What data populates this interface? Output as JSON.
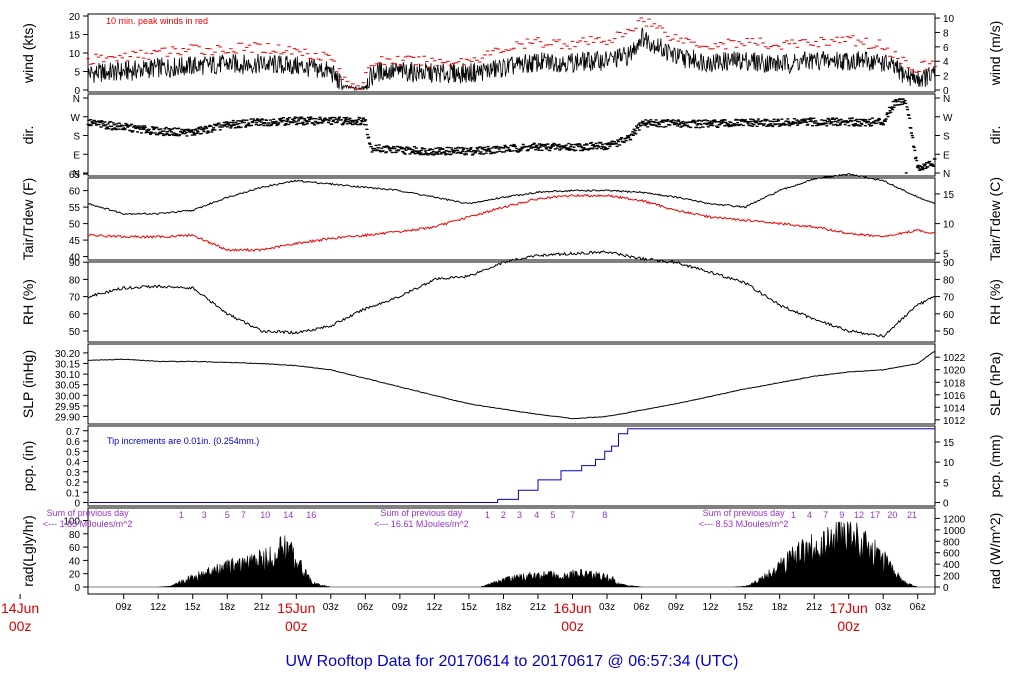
{
  "title": "UW Rooftop Data for 20170614  to  20170617 @ 06:57:34  (UTC)",
  "time_axis": {
    "labels": [
      "09z",
      "12z",
      "15z",
      "18z",
      "21z",
      "03z",
      "06z",
      "09z",
      "12z",
      "15z",
      "18z",
      "21z",
      "03z",
      "06z",
      "09z",
      "12z",
      "15z",
      "18z",
      "21z",
      "03z",
      "06z"
    ],
    "label_hours": [
      9,
      12,
      15,
      18,
      21,
      27,
      30,
      33,
      36,
      39,
      42,
      45,
      51,
      54,
      57,
      60,
      63,
      66,
      69,
      75,
      78
    ],
    "day_markers": [
      {
        "date": "14Jun",
        "time": "00z",
        "hour": 0
      },
      {
        "date": "15Jun",
        "time": "00z",
        "hour": 24
      },
      {
        "date": "16Jun",
        "time": "00z",
        "hour": 48
      },
      {
        "date": "17Jun",
        "time": "00z",
        "hour": 72
      }
    ]
  },
  "panels": {
    "wind": {
      "ylabel": "wind (kts)",
      "ylabel_right": "wind (m/s)",
      "ticks": [
        "0",
        "5",
        "10",
        "15",
        "20"
      ],
      "ticks_right": [
        "0",
        "2",
        "4",
        "6",
        "8",
        "10"
      ],
      "note": "10 min. peak winds in red"
    },
    "dir": {
      "ylabel": "dir.",
      "ticks": [
        "N",
        "E",
        "S",
        "W",
        "N"
      ]
    },
    "temp": {
      "ylabel": "Tair/Tdew (F)",
      "ylabel_right": "Tair/Tdew (C)",
      "ticks": [
        "40",
        "45",
        "50",
        "55",
        "60",
        "65"
      ],
      "ticks_right": [
        "5",
        "10",
        "15"
      ]
    },
    "rh": {
      "ylabel": "RH (%)",
      "ticks": [
        "50",
        "60",
        "70",
        "80",
        "90"
      ]
    },
    "slp": {
      "ylabel": "SLP (inHg)",
      "ylabel_right": "SLP (hPa)",
      "ticks": [
        "29.90",
        "29.95",
        "30.00",
        "30.05",
        "30.10",
        "30.15",
        "30.20"
      ],
      "ticks_right": [
        "1012",
        "1014",
        "1016",
        "1018",
        "1020",
        "1022"
      ]
    },
    "pcp": {
      "ylabel": "pcp. (in)",
      "ylabel_right": "pcp. (mm)",
      "ticks": [
        "0",
        "0.1",
        "0.2",
        "0.3",
        "0.4",
        "0.5",
        "0.6",
        "0.7"
      ],
      "ticks_right": [
        "0",
        "5",
        "10",
        "15"
      ],
      "note": "Tip increments are 0.01in. (0.254mm.)"
    },
    "rad": {
      "ylabel": "rad(Lgly/hr)",
      "ylabel_right": "rad (W/m^2)",
      "ticks": [
        "0",
        "20",
        "40",
        "60",
        "80",
        "100"
      ],
      "ticks_right": [
        "0",
        "200",
        "400",
        "600",
        "800",
        "1000",
        "1200"
      ],
      "day_sums": [
        {
          "label": "Sum of previous day",
          "value": "<--- 1.83 MJoules/m^2",
          "hour": 3
        },
        {
          "label": "Sum of previous day",
          "value": "<--- 16.61 MJoules/m^2",
          "hour": 32
        },
        {
          "label": "Sum of previous day",
          "value": "<--- 8.53 MJoules/m^2",
          "hour": 60
        }
      ],
      "hour_marks": [
        {
          "label": "1",
          "hour": 14
        },
        {
          "label": "3",
          "hour": 16
        },
        {
          "label": "5",
          "hour": 18
        },
        {
          "label": "7",
          "hour": 19.4
        },
        {
          "label": "10",
          "hour": 21.3
        },
        {
          "label": "14",
          "hour": 23.3
        },
        {
          "label": "16",
          "hour": 25.3
        },
        {
          "label": "1",
          "hour": 40.6
        },
        {
          "label": "2",
          "hour": 42
        },
        {
          "label": "3",
          "hour": 43.4
        },
        {
          "label": "4",
          "hour": 44.9
        },
        {
          "label": "5",
          "hour": 46.3
        },
        {
          "label": "7",
          "hour": 48
        },
        {
          "label": "8",
          "hour": 50.8
        },
        {
          "label": "1",
          "hour": 67.2
        },
        {
          "label": "4",
          "hour": 68.6
        },
        {
          "label": "7",
          "hour": 70
        },
        {
          "label": "9",
          "hour": 71.4
        },
        {
          "label": "12",
          "hour": 72.9
        },
        {
          "label": "17",
          "hour": 74.3
        },
        {
          "label": "20",
          "hour": 75.8
        },
        {
          "label": "21",
          "hour": 77.5
        }
      ]
    }
  },
  "colors": {
    "title": "#0000cc",
    "day_marker": "#dd0000",
    "peak": "#ee0000",
    "dew": "#ee0000",
    "pcp": "#0000cc",
    "purple": "#9933cc",
    "trace": "#000000"
  },
  "chart_data": {
    "type": "line",
    "x_unit": "hours since 14Jun 00z (UTC)",
    "x_range": [
      5.9,
      79.5
    ],
    "series": [
      {
        "name": "wind",
        "unit": "kts",
        "x": [
          6,
          9,
          12,
          15,
          18,
          21,
          24,
          27,
          28,
          29.5,
          31,
          33,
          36,
          39,
          42,
          45,
          48,
          51,
          53,
          54,
          57,
          60,
          63,
          66,
          69,
          72,
          75,
          77,
          78,
          79.5
        ],
        "y": [
          4.5,
          5,
          6,
          6.5,
          7,
          7,
          6.5,
          5,
          1,
          0.2,
          5,
          5,
          4.5,
          4.5,
          6,
          7.5,
          7.5,
          8,
          9.5,
          14.5,
          9,
          7.5,
          8,
          7,
          8,
          8,
          7.5,
          4,
          3,
          4
        ]
      },
      {
        "name": "peak wind",
        "unit": "kts",
        "x": [
          6,
          9,
          12,
          15,
          18,
          21,
          24,
          27,
          28,
          29.5,
          31,
          33,
          36,
          39,
          42,
          45,
          48,
          51,
          53,
          54,
          57,
          60,
          63,
          66,
          69,
          72,
          75,
          77,
          78,
          79.5
        ],
        "y": [
          8,
          9,
          10,
          11,
          11,
          11.5,
          10.5,
          9,
          3,
          1,
          8,
          8,
          7.5,
          8,
          11,
          13,
          12.5,
          13.5,
          15.5,
          19.5,
          14,
          12,
          13,
          12,
          13,
          13.5,
          12,
          7,
          6,
          7
        ]
      },
      {
        "name": "dir",
        "unit": "deg",
        "x": [
          6,
          9,
          12,
          15,
          18,
          21,
          24,
          27,
          30,
          30.5,
          33,
          36,
          39,
          42,
          45,
          48,
          51,
          53,
          54,
          57,
          60,
          63,
          66,
          69,
          72,
          75,
          76,
          77,
          78,
          79.5
        ],
        "y": [
          240,
          220,
          200,
          195,
          230,
          245,
          250,
          250,
          250,
          120,
          110,
          105,
          105,
          115,
          125,
          125,
          130,
          165,
          240,
          238,
          235,
          240,
          240,
          245,
          245,
          245,
          340,
          350,
          20,
          50
        ]
      },
      {
        "name": "Tair",
        "unit": "F",
        "x": [
          6,
          9,
          12,
          15,
          18,
          21,
          24,
          27,
          30,
          33,
          36,
          39,
          42,
          45,
          48,
          51,
          54,
          57,
          60,
          63,
          66,
          69,
          72,
          75,
          78,
          79.5
        ],
        "y": [
          56,
          53,
          53,
          54,
          58,
          61,
          63,
          62,
          61,
          60,
          58,
          56,
          58,
          59.5,
          60,
          60,
          59.5,
          58,
          56,
          55,
          60,
          63.5,
          65,
          63,
          58,
          56
        ]
      },
      {
        "name": "Tdew",
        "unit": "F",
        "x": [
          6,
          9,
          12,
          15,
          18,
          21,
          24,
          27,
          30,
          33,
          36,
          39,
          42,
          45,
          48,
          51,
          54,
          57,
          60,
          63,
          66,
          69,
          72,
          75,
          78,
          79.5
        ],
        "y": [
          46.5,
          46,
          46,
          46.5,
          42,
          42,
          44,
          45.5,
          46.5,
          47.5,
          49,
          52,
          55,
          57.5,
          58.5,
          58.5,
          57,
          54,
          52,
          51,
          50,
          49,
          47,
          46,
          48,
          47
        ]
      },
      {
        "name": "RH",
        "unit": "%",
        "x": [
          6,
          9,
          12,
          15,
          18,
          21,
          24,
          27,
          30,
          33,
          36,
          39,
          42,
          45,
          48,
          51,
          54,
          57,
          60,
          63,
          66,
          69,
          72,
          75,
          78,
          79.5
        ],
        "y": [
          70,
          75,
          76,
          75,
          60,
          50,
          49,
          53,
          63,
          70,
          80,
          82,
          90,
          94,
          95,
          96,
          92,
          90,
          84,
          78,
          65,
          57,
          50,
          47,
          65,
          70
        ]
      },
      {
        "name": "SLP",
        "unit": "inHg",
        "x": [
          6,
          9,
          12,
          15,
          18,
          21,
          24,
          27,
          30,
          33,
          36,
          39,
          42,
          45,
          48,
          51,
          54,
          57,
          60,
          63,
          66,
          69,
          72,
          75,
          78,
          79.5
        ],
        "y": [
          30.165,
          30.17,
          30.16,
          30.16,
          30.155,
          30.15,
          30.14,
          30.12,
          30.08,
          30.04,
          30.0,
          29.96,
          29.935,
          29.91,
          29.89,
          29.9,
          29.93,
          29.96,
          29.995,
          30.03,
          30.06,
          30.09,
          30.11,
          30.12,
          30.15,
          30.21
        ]
      },
      {
        "name": "pcp",
        "unit": "in",
        "x": [
          6,
          36,
          39.3,
          41.5,
          43.3,
          45,
          47,
          48.8,
          50,
          50.8,
          51.4,
          52,
          52.8,
          79.5
        ],
        "y": [
          0,
          0,
          0,
          0.03,
          0.12,
          0.22,
          0.31,
          0.36,
          0.42,
          0.5,
          0.55,
          0.67,
          0.72,
          0.72
        ]
      },
      {
        "name": "rad",
        "unit": "Lgly/hr",
        "x": [
          6,
          10,
          12,
          13,
          15,
          17,
          19,
          21,
          22,
          23,
          24,
          24.8,
          25.5,
          27,
          29,
          30,
          33,
          36,
          38,
          40,
          42,
          44,
          46,
          48,
          49,
          50,
          51.5,
          52,
          54,
          57,
          60,
          62,
          63,
          64,
          66,
          68,
          70,
          72,
          73,
          74,
          75,
          76,
          77,
          78,
          79.5
        ],
        "y": [
          0,
          0,
          0,
          1,
          14,
          24,
          33,
          40,
          44,
          60,
          40,
          20,
          5,
          0,
          0,
          0,
          0,
          0,
          0,
          0,
          10,
          16,
          17,
          18,
          19,
          17,
          12,
          4,
          0,
          0,
          0,
          0,
          1,
          8,
          30,
          55,
          62,
          80,
          70,
          55,
          40,
          20,
          5,
          0,
          0
        ]
      }
    ]
  }
}
